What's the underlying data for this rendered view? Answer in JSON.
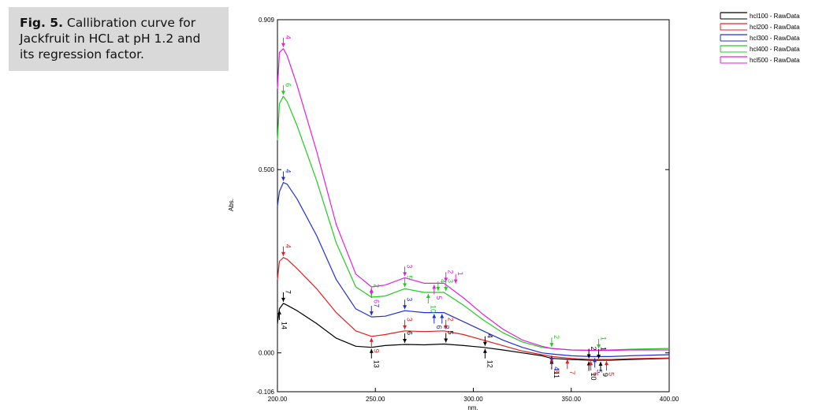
{
  "caption": {
    "label": "Fig. 5.",
    "text": "Callibration curve for Jackfruit in HCL at pH 1.2 and its regression factor."
  },
  "chart_data": {
    "type": "line",
    "title": "",
    "xlabel": "nm.",
    "ylabel": "Abs.",
    "xlim": [
      200,
      400
    ],
    "ylim": [
      -0.106,
      0.909
    ],
    "x_ticks": [
      "200.00",
      "250.00",
      "300.00",
      "350.00",
      "400.00"
    ],
    "y_ticks": [
      "0.909",
      "0.500",
      "0.000",
      "-0.106"
    ],
    "legend_position": "top-right",
    "grid": false,
    "series": [
      {
        "name": "hcl100 - RawData",
        "color": "#000000",
        "x": [
          200,
          201,
          203,
          205,
          210,
          220,
          230,
          240,
          248,
          255,
          265,
          275,
          285,
          295,
          305,
          315,
          325,
          335,
          340,
          350,
          360,
          370,
          380,
          400
        ],
        "y": [
          0.08,
          0.12,
          0.135,
          0.13,
          0.115,
          0.08,
          0.04,
          0.018,
          0.015,
          0.02,
          0.023,
          0.022,
          0.024,
          0.02,
          0.015,
          0.008,
          0.0,
          -0.008,
          -0.015,
          -0.018,
          -0.02,
          -0.02,
          -0.018,
          -0.015
        ]
      },
      {
        "name": "hcl200 - RawData",
        "color": "#e02020",
        "x": [
          200,
          201,
          203,
          205,
          210,
          220,
          230,
          240,
          248,
          255,
          265,
          275,
          285,
          295,
          305,
          315,
          325,
          335,
          340,
          350,
          360,
          370,
          380,
          400
        ],
        "y": [
          0.2,
          0.25,
          0.26,
          0.255,
          0.23,
          0.175,
          0.11,
          0.06,
          0.045,
          0.05,
          0.06,
          0.058,
          0.06,
          0.05,
          0.035,
          0.02,
          0.005,
          -0.005,
          -0.01,
          -0.015,
          -0.018,
          -0.018,
          -0.016,
          -0.014
        ]
      },
      {
        "name": "hcl300 - RawData",
        "color": "#2030d0",
        "x": [
          200,
          201,
          203,
          205,
          210,
          220,
          230,
          240,
          248,
          255,
          265,
          275,
          285,
          295,
          305,
          315,
          325,
          335,
          340,
          350,
          360,
          370,
          380,
          400
        ],
        "y": [
          0.4,
          0.44,
          0.465,
          0.46,
          0.42,
          0.32,
          0.2,
          0.12,
          0.098,
          0.1,
          0.115,
          0.11,
          0.11,
          0.085,
          0.06,
          0.035,
          0.015,
          0.0,
          -0.003,
          -0.008,
          -0.01,
          -0.01,
          -0.008,
          -0.005
        ]
      },
      {
        "name": "hcl400 - RawData",
        "color": "#20cc20",
        "x": [
          200,
          201,
          203,
          205,
          210,
          220,
          230,
          240,
          248,
          255,
          265,
          275,
          285,
          295,
          305,
          315,
          325,
          335,
          340,
          350,
          360,
          370,
          380,
          400
        ],
        "y": [
          0.58,
          0.68,
          0.7,
          0.685,
          0.62,
          0.47,
          0.3,
          0.18,
          0.152,
          0.155,
          0.175,
          0.165,
          0.165,
          0.13,
          0.09,
          0.055,
          0.03,
          0.015,
          0.012,
          0.008,
          0.007,
          0.008,
          0.01,
          0.012
        ]
      },
      {
        "name": "hcl500 - RawData",
        "color": "#e020e0",
        "x": [
          200,
          201,
          203,
          205,
          210,
          220,
          230,
          240,
          248,
          255,
          265,
          275,
          285,
          295,
          305,
          315,
          325,
          335,
          340,
          350,
          360,
          370,
          380,
          400
        ],
        "y": [
          0.72,
          0.82,
          0.83,
          0.81,
          0.73,
          0.55,
          0.35,
          0.215,
          0.18,
          0.185,
          0.205,
          0.19,
          0.19,
          0.15,
          0.105,
          0.065,
          0.035,
          0.018,
          0.012,
          0.008,
          0.007,
          0.007,
          0.008,
          0.008
        ]
      }
    ],
    "peak_markers": [
      {
        "series": 0,
        "x": 203,
        "y": 0.135,
        "label": "7",
        "dir": "up"
      },
      {
        "series": 0,
        "x": 201,
        "y": 0.12,
        "label": "14",
        "dir": "down"
      },
      {
        "series": 0,
        "x": 248,
        "y": 0.015,
        "label": "13",
        "dir": "down"
      },
      {
        "series": 0,
        "x": 265,
        "y": 0.023,
        "label": "6",
        "dir": "up"
      },
      {
        "series": 0,
        "x": 286,
        "y": 0.024,
        "label": "5",
        "dir": "up"
      },
      {
        "series": 0,
        "x": 306,
        "y": 0.015,
        "label": "4",
        "dir": "up"
      },
      {
        "series": 0,
        "x": 306,
        "y": 0.015,
        "label": "12",
        "dir": "down"
      },
      {
        "series": 0,
        "x": 340,
        "y": -0.015,
        "label": "11",
        "dir": "down"
      },
      {
        "series": 0,
        "x": 359,
        "y": -0.019,
        "label": "2",
        "dir": "up"
      },
      {
        "series": 0,
        "x": 359,
        "y": -0.019,
        "label": "10",
        "dir": "down"
      },
      {
        "series": 0,
        "x": 364,
        "y": -0.02,
        "label": "1",
        "dir": "up"
      },
      {
        "series": 0,
        "x": 365,
        "y": -0.02,
        "label": "9",
        "dir": "down"
      },
      {
        "series": 1,
        "x": 203,
        "y": 0.26,
        "label": "4",
        "dir": "up"
      },
      {
        "series": 1,
        "x": 248,
        "y": 0.045,
        "label": "9",
        "dir": "down"
      },
      {
        "series": 1,
        "x": 265,
        "y": 0.06,
        "label": "3",
        "dir": "up"
      },
      {
        "series": 1,
        "x": 286,
        "y": 0.06,
        "label": "2",
        "dir": "up"
      },
      {
        "series": 1,
        "x": 340,
        "y": -0.01,
        "label": "8",
        "dir": "down"
      },
      {
        "series": 1,
        "x": 348,
        "y": -0.014,
        "label": "7",
        "dir": "down"
      },
      {
        "series": 1,
        "x": 360,
        "y": -0.018,
        "label": "6",
        "dir": "down"
      },
      {
        "series": 1,
        "x": 368,
        "y": -0.018,
        "label": "5",
        "dir": "down"
      },
      {
        "series": 2,
        "x": 203,
        "y": 0.465,
        "label": "4",
        "dir": "up"
      },
      {
        "series": 2,
        "x": 248,
        "y": 0.098,
        "label": "7",
        "dir": "up"
      },
      {
        "series": 2,
        "x": 265,
        "y": 0.115,
        "label": "3",
        "dir": "up"
      },
      {
        "series": 2,
        "x": 280,
        "y": 0.11,
        "label": "6",
        "dir": "down"
      },
      {
        "series": 2,
        "x": 284,
        "y": 0.11,
        "label": "2",
        "dir": "down"
      },
      {
        "series": 2,
        "x": 340,
        "y": -0.003,
        "label": "4",
        "dir": "down"
      },
      {
        "series": 2,
        "x": 362,
        "y": -0.01,
        "label": "5",
        "dir": "down"
      },
      {
        "series": 3,
        "x": 203,
        "y": 0.7,
        "label": "6",
        "dir": "up"
      },
      {
        "series": 3,
        "x": 248,
        "y": 0.152,
        "label": "2",
        "dir": "up"
      },
      {
        "series": 3,
        "x": 265,
        "y": 0.175,
        "label": "5",
        "dir": "up"
      },
      {
        "series": 3,
        "x": 277,
        "y": 0.165,
        "label": "10",
        "dir": "down"
      },
      {
        "series": 3,
        "x": 282,
        "y": 0.165,
        "label": "4",
        "dir": "up"
      },
      {
        "series": 3,
        "x": 286,
        "y": 0.165,
        "label": "3",
        "dir": "up"
      },
      {
        "series": 3,
        "x": 340,
        "y": 0.012,
        "label": "2",
        "dir": "up"
      },
      {
        "series": 3,
        "x": 364,
        "y": 0.008,
        "label": "1",
        "dir": "up"
      },
      {
        "series": 4,
        "x": 203,
        "y": 0.83,
        "label": "4",
        "dir": "up"
      },
      {
        "series": 4,
        "x": 248,
        "y": 0.18,
        "label": "6",
        "dir": "down"
      },
      {
        "series": 4,
        "x": 265,
        "y": 0.205,
        "label": "3",
        "dir": "up"
      },
      {
        "series": 4,
        "x": 280,
        "y": 0.19,
        "label": "5",
        "dir": "down"
      },
      {
        "series": 4,
        "x": 286,
        "y": 0.19,
        "label": "2",
        "dir": "up"
      },
      {
        "series": 4,
        "x": 291,
        "y": 0.185,
        "label": "1",
        "dir": "up"
      }
    ]
  }
}
